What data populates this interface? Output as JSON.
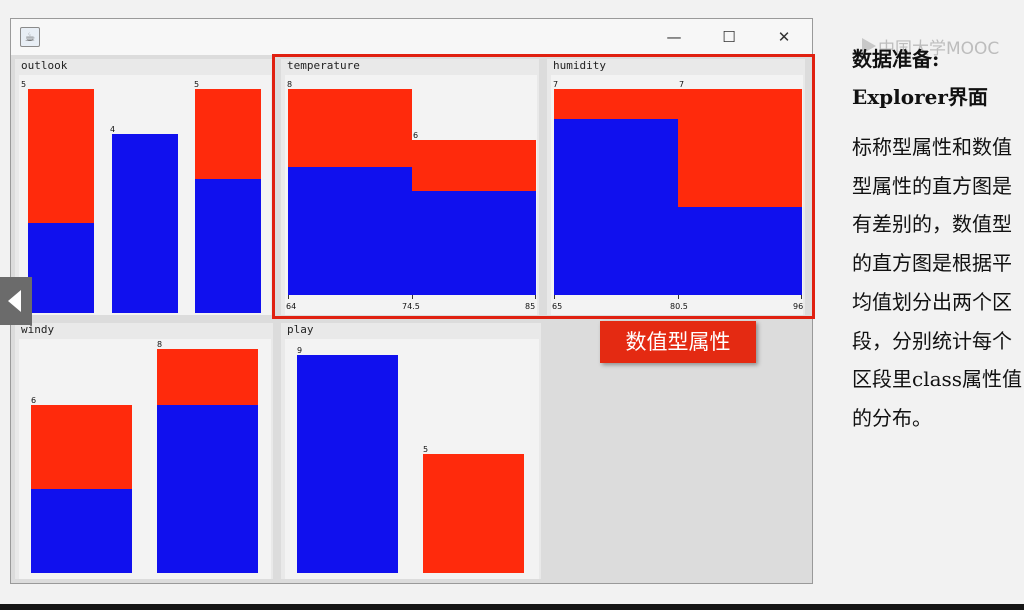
{
  "window": {
    "controls": {
      "minimize": "—",
      "maximize": "☐",
      "close": "✕"
    },
    "app_icon": "java-coffee-icon"
  },
  "colors": {
    "class_a": "#1010ee",
    "class_b": "#ff2a0c",
    "highlight": "#e02010"
  },
  "panels": {
    "outlook": {
      "title": "outlook",
      "bars": [
        {
          "count": "5",
          "blue": 2,
          "red": 3
        },
        {
          "count": "4",
          "blue": 4,
          "red": 0
        },
        {
          "count": "5",
          "blue": 3,
          "red": 2
        }
      ]
    },
    "temperature": {
      "title": "temperature",
      "bars": [
        {
          "count": "8",
          "blue": 5,
          "red": 3
        },
        {
          "count": "6",
          "blue": 4,
          "red": 2
        }
      ],
      "ticks": [
        "64",
        "74.5",
        "85"
      ]
    },
    "humidity": {
      "title": "humidity",
      "bars": [
        {
          "count": "7",
          "blue": 6,
          "red": 1
        },
        {
          "count": "7",
          "blue": 3,
          "red": 4
        }
      ],
      "ticks": [
        "65",
        "80.5",
        "96"
      ]
    },
    "windy": {
      "title": "windy",
      "bars": [
        {
          "count": "6",
          "blue": 3,
          "red": 3
        },
        {
          "count": "8",
          "blue": 6,
          "red": 2
        }
      ]
    },
    "play": {
      "title": "play",
      "bars": [
        {
          "count": "9",
          "blue": 9,
          "red": 0
        },
        {
          "count": "5",
          "blue": 0,
          "red": 5
        }
      ]
    }
  },
  "highlight_label": "数值型属性",
  "watermark": "中国大学MOOC",
  "side": {
    "title_line1": "数据准备:",
    "title_line2": "Explorer界面",
    "body": "标称型属性和数值型属性的直方图是有差别的，数值型的直方图是根据平均值划分出两个区段，分别统计每个区段里class属性值的分布。"
  }
}
